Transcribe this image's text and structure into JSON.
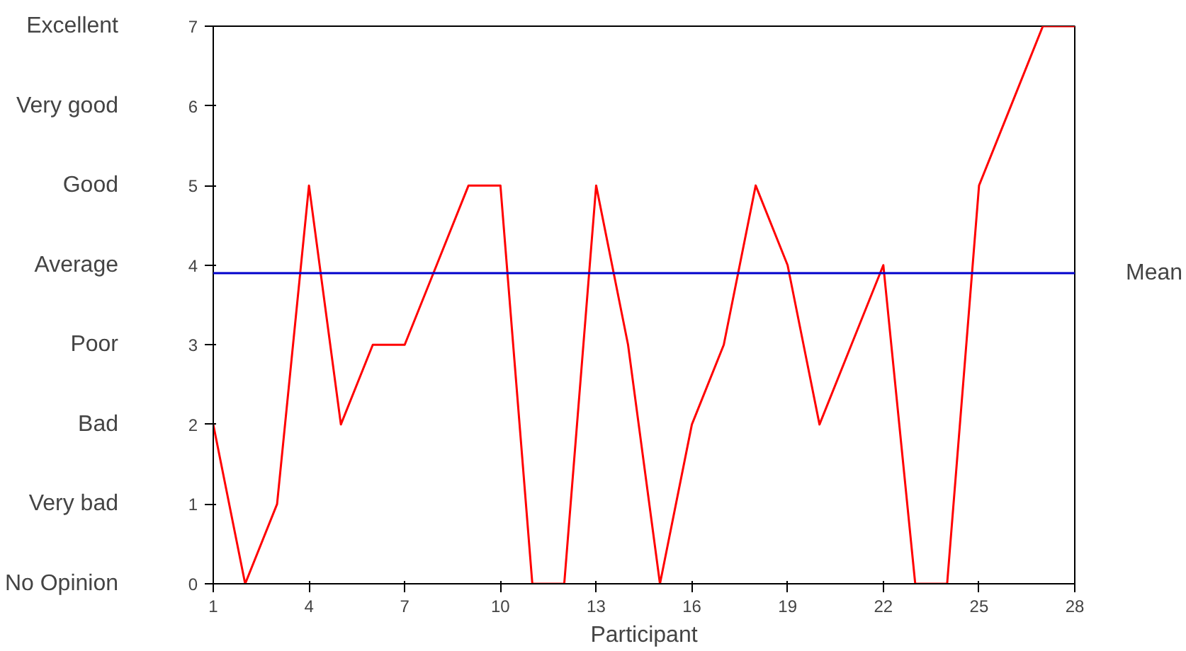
{
  "chart_data": {
    "type": "line",
    "xlabel": "Participant",
    "x": [
      1,
      2,
      3,
      4,
      5,
      6,
      7,
      8,
      9,
      10,
      11,
      12,
      13,
      14,
      15,
      16,
      17,
      18,
      19,
      20,
      21,
      22,
      23,
      24,
      25,
      26,
      27,
      28
    ],
    "series": [
      {
        "color": "#ff0000",
        "values": [
          2,
          0,
          1,
          5,
          2,
          3,
          3,
          4,
          5,
          5,
          0,
          0,
          5,
          3,
          0,
          2,
          3,
          5,
          4,
          2,
          3,
          4,
          0,
          0,
          5,
          6,
          7,
          7
        ]
      }
    ],
    "xlim": [
      1,
      28
    ],
    "xticks": [
      1,
      4,
      7,
      10,
      13,
      16,
      19,
      22,
      25,
      28
    ],
    "ylim": [
      0,
      7
    ],
    "yticks": [
      0,
      1,
      2,
      3,
      4,
      5,
      6,
      7
    ],
    "y2_categories": [
      "Excellent",
      "Very good",
      "Good",
      "Average",
      "Poor",
      "Bad",
      "Very bad",
      "No Opinion"
    ],
    "ref_lines": [
      {
        "axis": "y",
        "value": 3.9,
        "label": "Mean",
        "color": "#0000cc"
      }
    ],
    "grid": false,
    "marker": "none",
    "line_style": "solid"
  }
}
